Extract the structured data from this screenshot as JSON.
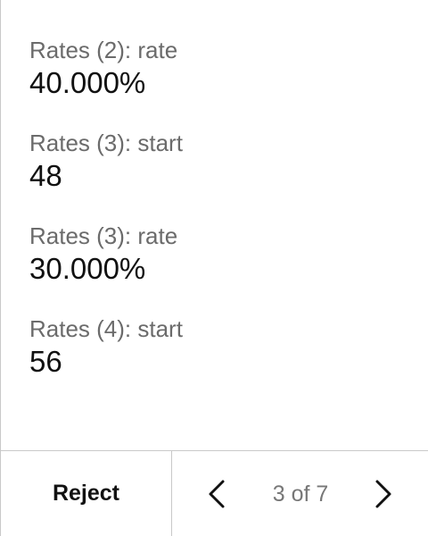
{
  "fields": [
    {
      "label": "Rates (2): rate",
      "value": "40.000%"
    },
    {
      "label": "Rates (3): start",
      "value": "48"
    },
    {
      "label": "Rates (3): rate",
      "value": "30.000%"
    },
    {
      "label": "Rates (4): start",
      "value": "56"
    }
  ],
  "footer": {
    "reject_label": "Reject",
    "page_indicator": "3 of 7",
    "prev_icon": "chevron-left-icon",
    "next_icon": "chevron-right-icon"
  }
}
